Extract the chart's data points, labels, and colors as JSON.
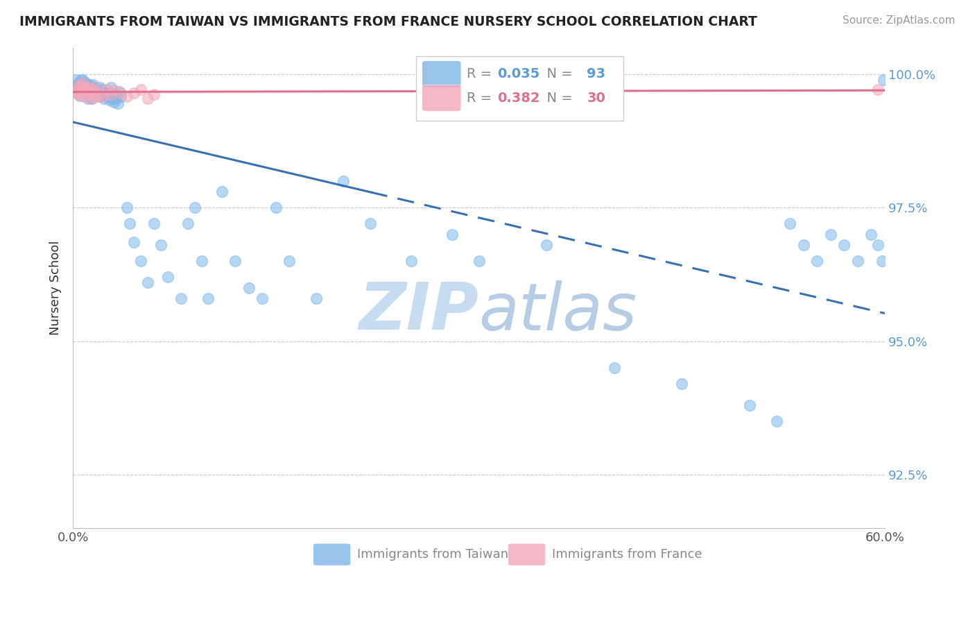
{
  "title": "IMMIGRANTS FROM TAIWAN VS IMMIGRANTS FROM FRANCE NURSERY SCHOOL CORRELATION CHART",
  "source": "Source: ZipAtlas.com",
  "ylabel": "Nursery School",
  "xlim": [
    0.0,
    0.6
  ],
  "ylim": [
    0.915,
    1.005
  ],
  "yticks": [
    0.925,
    0.95,
    0.975,
    1.0
  ],
  "ytick_labels": [
    "92.5%",
    "95.0%",
    "97.5%",
    "100.0%"
  ],
  "xtick_labels": [
    "0.0%",
    "60.0%"
  ],
  "taiwan_R": 0.035,
  "taiwan_N": 93,
  "france_R": 0.382,
  "france_N": 30,
  "taiwan_color": "#7EB6E8",
  "france_color": "#F4A7B9",
  "taiwan_line_color": "#3A6FB0",
  "france_line_color": "#E07090",
  "taiwan_x": [
    0.002,
    0.003,
    0.003,
    0.004,
    0.004,
    0.004,
    0.005,
    0.005,
    0.005,
    0.005,
    0.006,
    0.006,
    0.006,
    0.007,
    0.007,
    0.007,
    0.008,
    0.008,
    0.009,
    0.009,
    0.01,
    0.01,
    0.01,
    0.011,
    0.011,
    0.012,
    0.012,
    0.013,
    0.014,
    0.014,
    0.015,
    0.015,
    0.016,
    0.017,
    0.018,
    0.019,
    0.02,
    0.02,
    0.021,
    0.022,
    0.023,
    0.024,
    0.025,
    0.026,
    0.027,
    0.028,
    0.029,
    0.03,
    0.031,
    0.032,
    0.033,
    0.034,
    0.035,
    0.04,
    0.042,
    0.045,
    0.05,
    0.055,
    0.06,
    0.065,
    0.07,
    0.08,
    0.085,
    0.09,
    0.095,
    0.1,
    0.11,
    0.12,
    0.13,
    0.14,
    0.15,
    0.16,
    0.18,
    0.2,
    0.22,
    0.25,
    0.28,
    0.3,
    0.35,
    0.4,
    0.45,
    0.5,
    0.52,
    0.53,
    0.54,
    0.55,
    0.56,
    0.57,
    0.58,
    0.59,
    0.595,
    0.598,
    0.599
  ],
  "taiwan_y": [
    0.999,
    0.998,
    0.9975,
    0.997,
    0.9965,
    0.998,
    0.9985,
    0.997,
    0.9975,
    0.996,
    0.999,
    0.9978,
    0.9968,
    0.9975,
    0.999,
    0.9985,
    0.998,
    0.9972,
    0.9985,
    0.9968,
    0.9975,
    0.9982,
    0.9965,
    0.9978,
    0.9955,
    0.9972,
    0.998,
    0.9968,
    0.9975,
    0.9955,
    0.998,
    0.9965,
    0.9975,
    0.9972,
    0.9965,
    0.9968,
    0.9975,
    0.9958,
    0.9972,
    0.9965,
    0.9955,
    0.9962,
    0.9958,
    0.9965,
    0.9952,
    0.9975,
    0.9955,
    0.9948,
    0.9962,
    0.9955,
    0.9945,
    0.9968,
    0.9958,
    0.975,
    0.972,
    0.9685,
    0.965,
    0.961,
    0.972,
    0.968,
    0.962,
    0.958,
    0.972,
    0.975,
    0.965,
    0.958,
    0.978,
    0.965,
    0.96,
    0.958,
    0.975,
    0.965,
    0.958,
    0.98,
    0.972,
    0.965,
    0.97,
    0.965,
    0.968,
    0.945,
    0.942,
    0.938,
    0.935,
    0.972,
    0.968,
    0.965,
    0.97,
    0.968,
    0.965,
    0.97,
    0.968,
    0.965,
    0.999
  ],
  "france_x": [
    0.002,
    0.003,
    0.004,
    0.004,
    0.005,
    0.006,
    0.007,
    0.007,
    0.008,
    0.009,
    0.01,
    0.011,
    0.012,
    0.013,
    0.014,
    0.015,
    0.016,
    0.018,
    0.02,
    0.022,
    0.025,
    0.028,
    0.03,
    0.035,
    0.04,
    0.045,
    0.05,
    0.055,
    0.06,
    0.595
  ],
  "france_y": [
    0.9965,
    0.997,
    0.9962,
    0.9975,
    0.998,
    0.9972,
    0.9985,
    0.9965,
    0.9958,
    0.9975,
    0.9968,
    0.9975,
    0.9962,
    0.9955,
    0.9972,
    0.9965,
    0.9975,
    0.9958,
    0.9965,
    0.9958,
    0.9972,
    0.9962,
    0.997,
    0.9965,
    0.9958,
    0.9965,
    0.9972,
    0.9955,
    0.9962,
    0.9972
  ],
  "background_color": "#FFFFFF",
  "grid_color": "#CCCCCC",
  "watermark_zip_color": "#C8DCF0",
  "watermark_atlas_color": "#B8CCE4"
}
